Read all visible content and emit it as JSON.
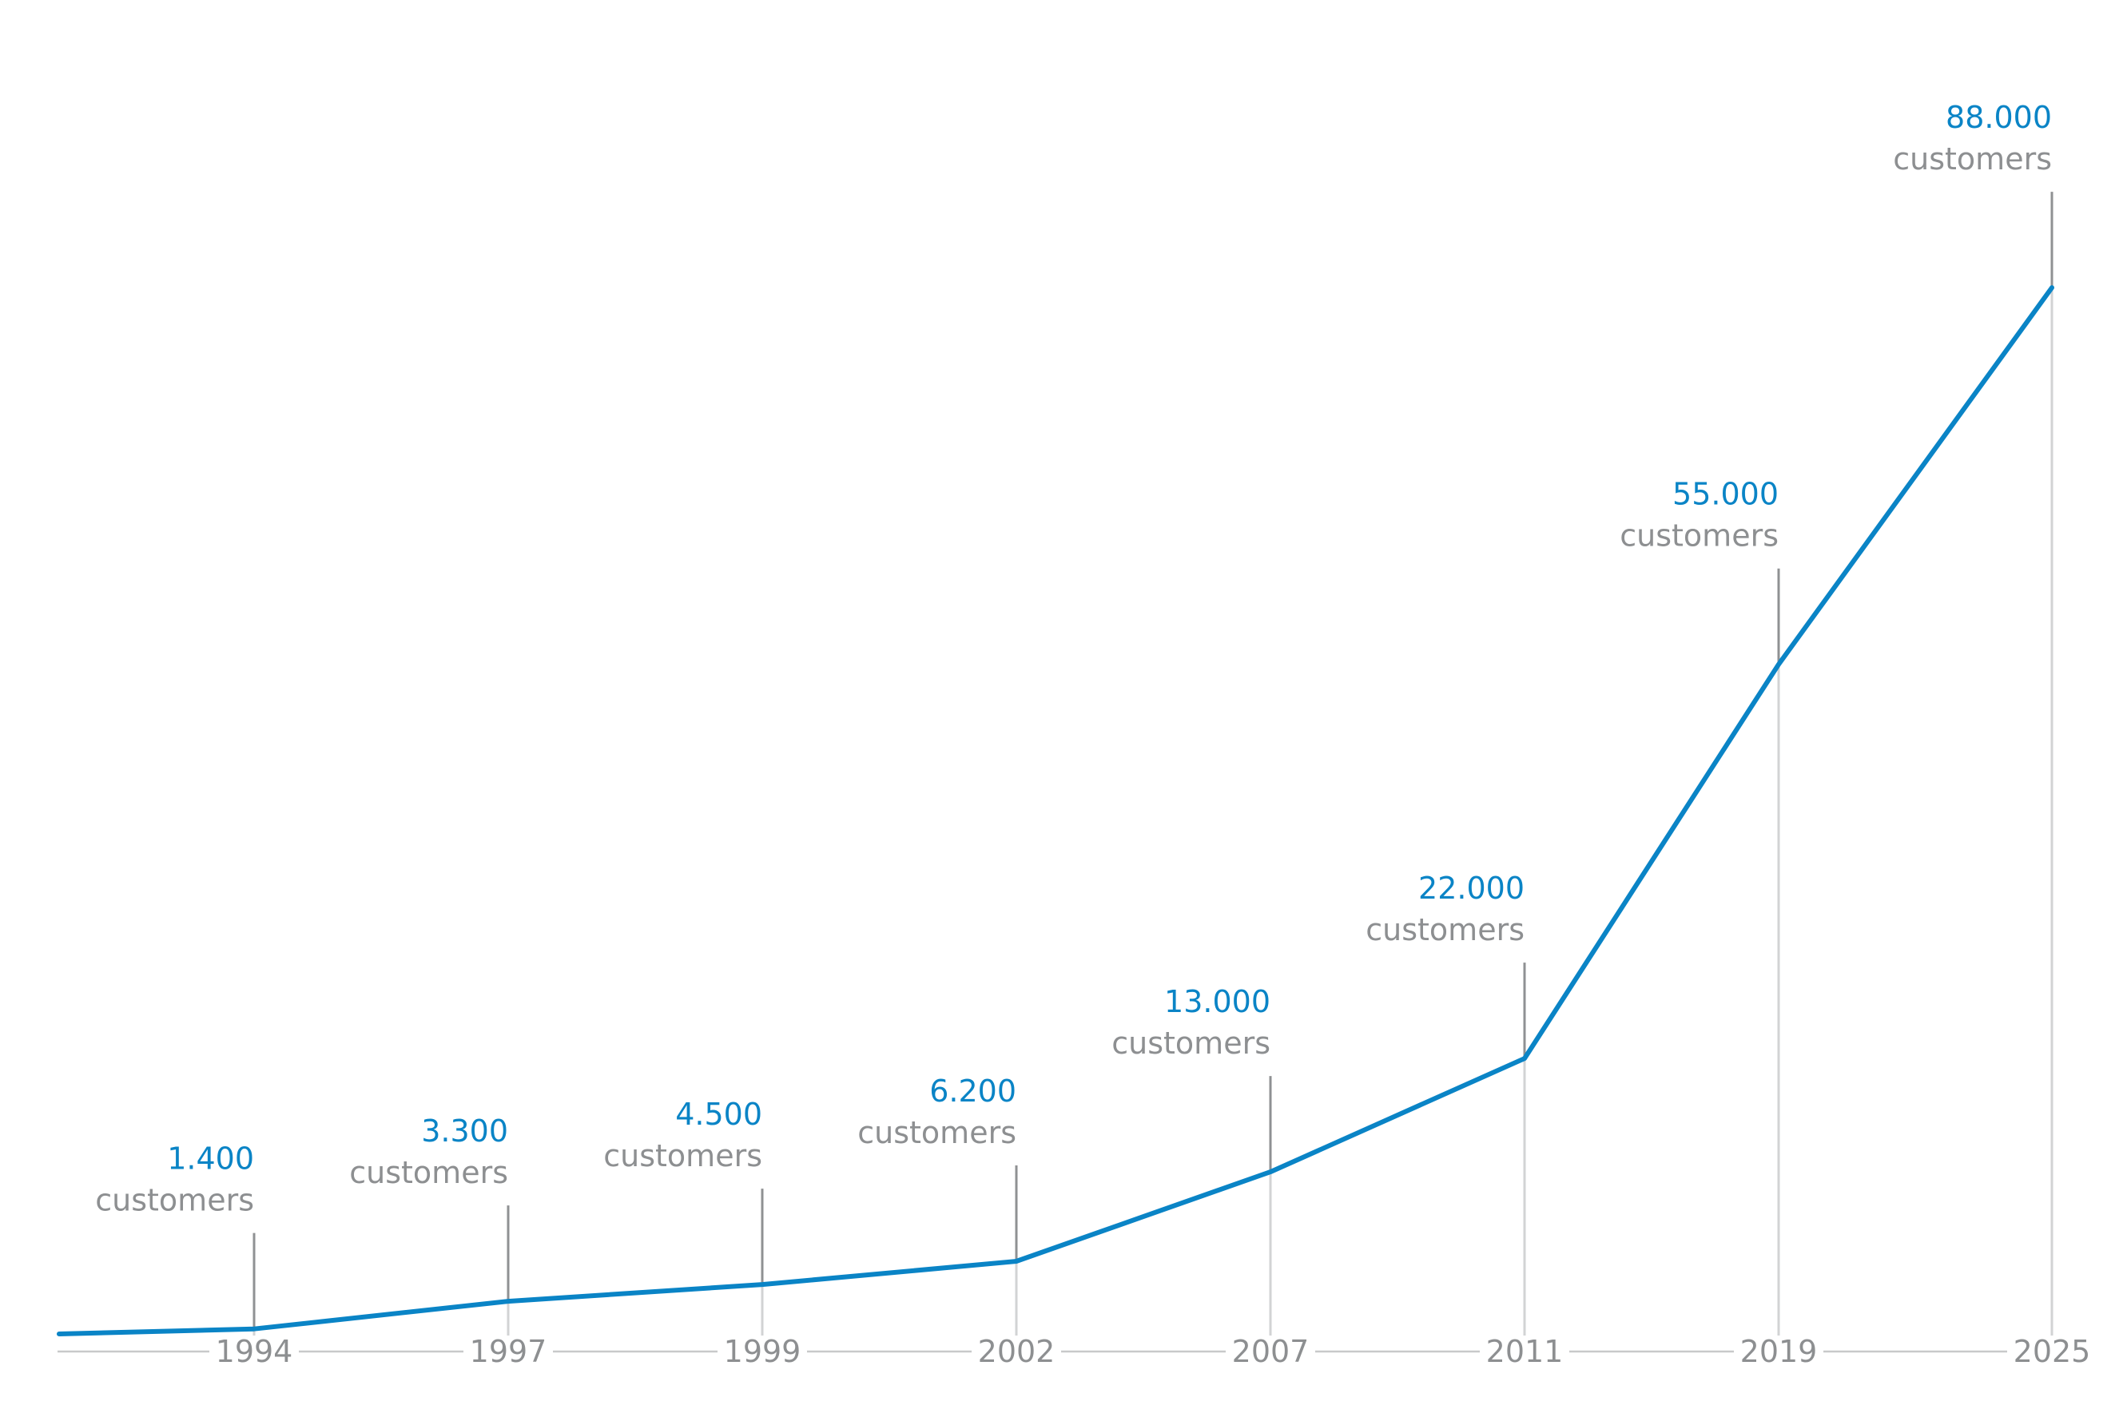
{
  "chart_data": {
    "type": "line",
    "x": [
      "1994",
      "1997",
      "1999",
      "2002",
      "2007",
      "2011",
      "2019",
      "2025"
    ],
    "values": [
      1400,
      3300,
      4500,
      6200,
      13000,
      22000,
      55000,
      88000
    ],
    "value_labels": [
      "1.400",
      "3.300",
      "4.500",
      "6.200",
      "13.000",
      "22.000",
      "55.000",
      "88.000"
    ],
    "unit_label": "customers",
    "ylim": [
      0,
      100000
    ],
    "grid": false,
    "legend": "none",
    "colors": {
      "line": "#0a84c6",
      "value_text": "#0a84c6",
      "secondary_text": "#8d8f91",
      "axis": "#c8c9ca"
    }
  }
}
